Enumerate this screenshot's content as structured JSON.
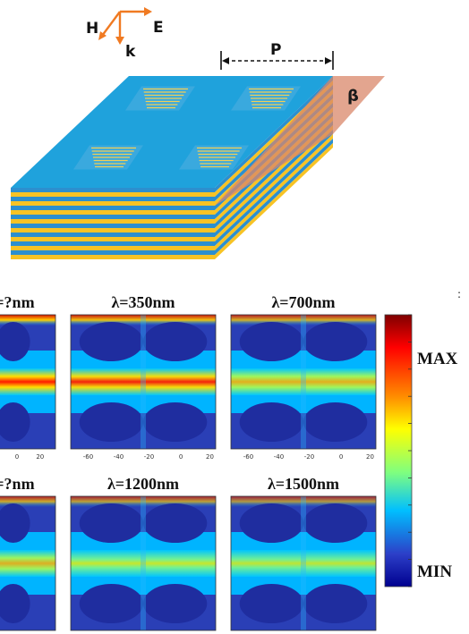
{
  "schematic": {
    "axes": {
      "h_label": "H",
      "e_label": "E",
      "k_label": "k"
    },
    "period_label": "P",
    "angle_label": "β",
    "colors": {
      "top_face": "#1fa2dc",
      "layer_blue": "#2c8fcf",
      "layer_gold": "#f7c325",
      "arrow": "#f07a22",
      "plane": "#d9876a"
    }
  },
  "panels": [
    {
      "label": "λ=?nm",
      "intensity": 1.0
    },
    {
      "label": "λ=350nm",
      "intensity": 0.9
    },
    {
      "label": "λ=700nm",
      "intensity": 0.75
    },
    {
      "label": "λ=?nm",
      "intensity": 0.7
    },
    {
      "label": "λ=1200nm",
      "intensity": 0.62
    },
    {
      "label": "λ=1500nm",
      "intensity": 0.55
    }
  ],
  "x_ticks": [
    "-60",
    "-40",
    "-20",
    "0",
    "20"
  ],
  "colorbar": {
    "max_label": "MAX",
    "min_label": "MIN"
  },
  "stray_mark": ":"
}
